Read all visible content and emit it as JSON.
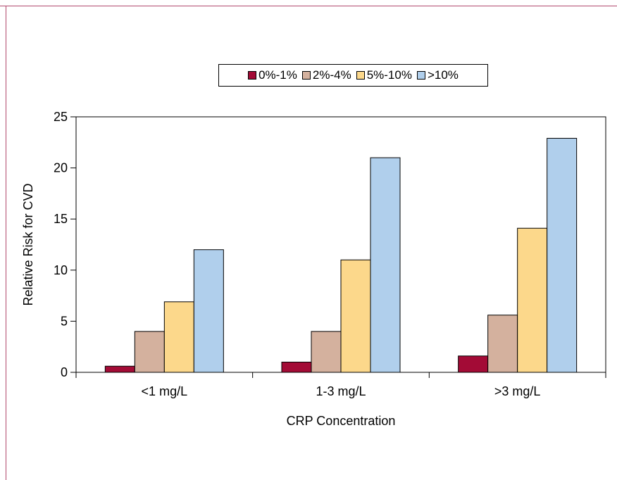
{
  "colors": {
    "frame": "#b0456a",
    "axis": "#000000"
  },
  "chart_data": {
    "type": "bar",
    "title": "",
    "xlabel": "CRP Concentration",
    "ylabel": "Relative Risk for CVD",
    "categories": [
      "<1 mg/L",
      "1-3 mg/L",
      ">3 mg/L"
    ],
    "ylim": [
      0,
      25
    ],
    "yticks": [
      "0",
      "5",
      "10",
      "15",
      "20",
      "25"
    ],
    "grid": false,
    "legend_position": "top",
    "series": [
      {
        "name": "0%-1%",
        "color": "#a30b36",
        "values": [
          0.6,
          1.0,
          1.6
        ]
      },
      {
        "name": "2%-4%",
        "color": "#d4b19e",
        "values": [
          4.0,
          4.0,
          5.6
        ]
      },
      {
        "name": "5%-10%",
        "color": "#fcd88b",
        "values": [
          6.9,
          11.0,
          14.1
        ]
      },
      {
        "name": ">10%",
        "color": "#b0cfec",
        "values": [
          12.0,
          21.0,
          22.9
        ]
      }
    ]
  }
}
